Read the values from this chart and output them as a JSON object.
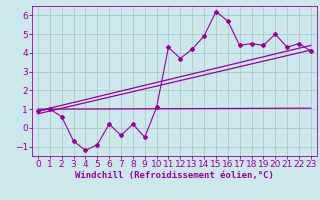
{
  "xlabel": "Windchill (Refroidissement éolien,°C)",
  "background_color": "#cce8ed",
  "line_color": "#990099",
  "grid_color": "#aacccc",
  "scatter_x": [
    0,
    1,
    2,
    3,
    4,
    5,
    6,
    7,
    8,
    9,
    10,
    11,
    12,
    13,
    14,
    15,
    16,
    17,
    18,
    19,
    20,
    21,
    22,
    23
  ],
  "scatter_y": [
    0.9,
    1.0,
    0.6,
    -0.7,
    -1.2,
    -0.9,
    0.2,
    -0.4,
    0.2,
    -0.5,
    1.1,
    4.3,
    3.7,
    4.2,
    4.9,
    6.2,
    5.7,
    4.4,
    4.5,
    4.4,
    5.0,
    4.3,
    4.5,
    4.1
  ],
  "line1_x": [
    0,
    23
  ],
  "line1_y": [
    1.0,
    1.05
  ],
  "line2_x": [
    0,
    23
  ],
  "line2_y": [
    0.9,
    4.4
  ],
  "line3_x": [
    0,
    23
  ],
  "line3_y": [
    0.75,
    4.15
  ],
  "xlim": [
    -0.5,
    23.5
  ],
  "ylim": [
    -1.5,
    6.5
  ],
  "yticks": [
    -1,
    0,
    1,
    2,
    3,
    4,
    5,
    6
  ],
  "xticks": [
    0,
    1,
    2,
    3,
    4,
    5,
    6,
    7,
    8,
    9,
    10,
    11,
    12,
    13,
    14,
    15,
    16,
    17,
    18,
    19,
    20,
    21,
    22,
    23
  ],
  "tick_fontsize": 6.5,
  "xlabel_fontsize": 6.5
}
